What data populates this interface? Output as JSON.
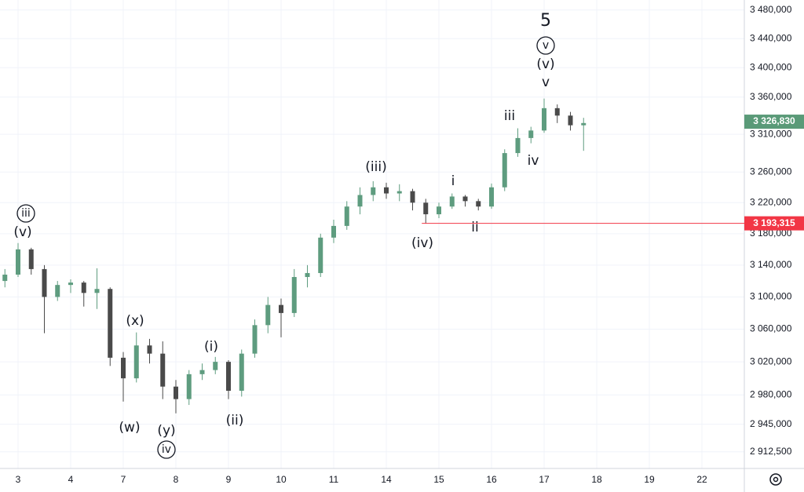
{
  "chart_data": {
    "type": "candlestick",
    "log_scale": true,
    "grid": true,
    "up_color": "#5e9c7f",
    "down_color": "#4a4a4a",
    "categories": [
      null,
      "3",
      null,
      null,
      null,
      "4",
      null,
      null,
      null,
      "7",
      null,
      null,
      null,
      "8",
      null,
      null,
      null,
      "9",
      null,
      null,
      null,
      "10",
      null,
      null,
      null,
      "11",
      null,
      null,
      null,
      "14",
      null,
      null,
      null,
      "15",
      null,
      null,
      null,
      "16",
      null,
      null,
      null,
      "17",
      null,
      null,
      null,
      "18",
      null,
      null,
      null,
      "19",
      null,
      null,
      null,
      "22",
      null,
      null,
      null
    ],
    "open": [
      3120000,
      3128000,
      3160000,
      3135000,
      3100000,
      3115000,
      3118000,
      3105000,
      3110000,
      3025000,
      3000000,
      3040000,
      3030000,
      2990000,
      2975000,
      3005000,
      3010000,
      3020000,
      2985000,
      3030000,
      3065000,
      3090000,
      3080000,
      3125000,
      3130000,
      3175000,
      3190000,
      3215000,
      3230000,
      3240000,
      3232000,
      3235000,
      3220000,
      3205000,
      3215000,
      3228000,
      3222000,
      3215000,
      3240000,
      3285000,
      3305000,
      3315000,
      3345000,
      3335000,
      3322000,
      null,
      null,
      null,
      null,
      null,
      null,
      null,
      null,
      null,
      null,
      null,
      null
    ],
    "high": [
      3135000,
      3168000,
      3162000,
      3140000,
      3120000,
      3122000,
      3120000,
      3136000,
      3112000,
      3032000,
      3056000,
      3048000,
      3045000,
      2998000,
      3010000,
      3018000,
      3026000,
      3022000,
      3035000,
      3072000,
      3100000,
      3098000,
      3135000,
      3140000,
      3180000,
      3198000,
      3222000,
      3240000,
      3248000,
      3246000,
      3244000,
      3238000,
      3225000,
      3220000,
      3232000,
      3230000,
      3225000,
      3245000,
      3290000,
      3318000,
      3320000,
      3358000,
      3350000,
      3340000,
      3332000,
      null,
      null,
      null,
      null,
      null,
      null,
      null,
      null,
      null,
      null,
      null,
      null
    ],
    "low": [
      3112000,
      3125000,
      3128000,
      3055000,
      3095000,
      3105000,
      3088000,
      3085000,
      3015000,
      2972000,
      2995000,
      3018000,
      2975000,
      2958000,
      2968000,
      2998000,
      3005000,
      2975000,
      2978000,
      3025000,
      3055000,
      3050000,
      3075000,
      3112000,
      3125000,
      3168000,
      3185000,
      3205000,
      3222000,
      3225000,
      3222000,
      3210000,
      3193000,
      3200000,
      3212000,
      3215000,
      3210000,
      3212000,
      3235000,
      3280000,
      3298000,
      3312000,
      3325000,
      3315000,
      3288000,
      null,
      null,
      null,
      null,
      null,
      null,
      null,
      null,
      null,
      null,
      null,
      null
    ],
    "close": [
      3128000,
      3160000,
      3135000,
      3100000,
      3115000,
      3118000,
      3105000,
      3110000,
      3025000,
      3000000,
      3040000,
      3030000,
      2990000,
      2975000,
      3005000,
      3010000,
      3020000,
      2985000,
      3030000,
      3065000,
      3090000,
      3080000,
      3125000,
      3130000,
      3175000,
      3190000,
      3215000,
      3230000,
      3240000,
      3232000,
      3235000,
      3220000,
      3205000,
      3215000,
      3228000,
      3222000,
      3215000,
      3240000,
      3285000,
      3305000,
      3315000,
      3345000,
      3335000,
      3322000,
      3325000,
      null,
      null,
      null,
      null,
      null,
      null,
      null,
      null,
      null,
      null,
      null,
      null
    ],
    "ylim": [
      2893000,
      3494000
    ],
    "yticks": [
      {
        "value": 3480000,
        "label": "3 480,000"
      },
      {
        "value": 3440000,
        "label": "3 440,000"
      },
      {
        "value": 3400000,
        "label": "3 400,000"
      },
      {
        "value": 3360000,
        "label": "3 360,000"
      },
      {
        "value": 3310000,
        "label": "3 310,000"
      },
      {
        "value": 3260000,
        "label": "3 260,000"
      },
      {
        "value": 3220000,
        "label": "3 220,000"
      },
      {
        "value": 3180000,
        "label": "3 180,000"
      },
      {
        "value": 3140000,
        "label": "3 140,000"
      },
      {
        "value": 3100000,
        "label": "3 100,000"
      },
      {
        "value": 3060000,
        "label": "3 060,000"
      },
      {
        "value": 3020000,
        "label": "3 020,000"
      },
      {
        "value": 2980000,
        "label": "2 980,000"
      },
      {
        "value": 2945000,
        "label": "2 945,000"
      },
      {
        "value": 2912500,
        "label": "2 912,500"
      }
    ],
    "last_price": {
      "value": 3326830,
      "label": "3 326,830",
      "color": "#5a9a78"
    },
    "level": {
      "value": 3193315,
      "label": "3 193,315",
      "color": "#f23645"
    },
    "annotations": [
      {
        "text": "iii",
        "circled": true
      },
      {
        "text": "(v)"
      },
      {
        "text": "(x)"
      },
      {
        "text": "(w)"
      },
      {
        "text": "(y)"
      },
      {
        "text": "iv",
        "circled": true
      },
      {
        "text": "(i)"
      },
      {
        "text": "(ii)"
      },
      {
        "text": "(iii)"
      },
      {
        "text": "i"
      },
      {
        "text": "(iv)"
      },
      {
        "text": "ii"
      },
      {
        "text": "iii"
      },
      {
        "text": "iv"
      },
      {
        "text": "v"
      },
      {
        "text": "(v)"
      },
      {
        "text": "v",
        "circled": true
      },
      {
        "text": "5"
      }
    ]
  }
}
